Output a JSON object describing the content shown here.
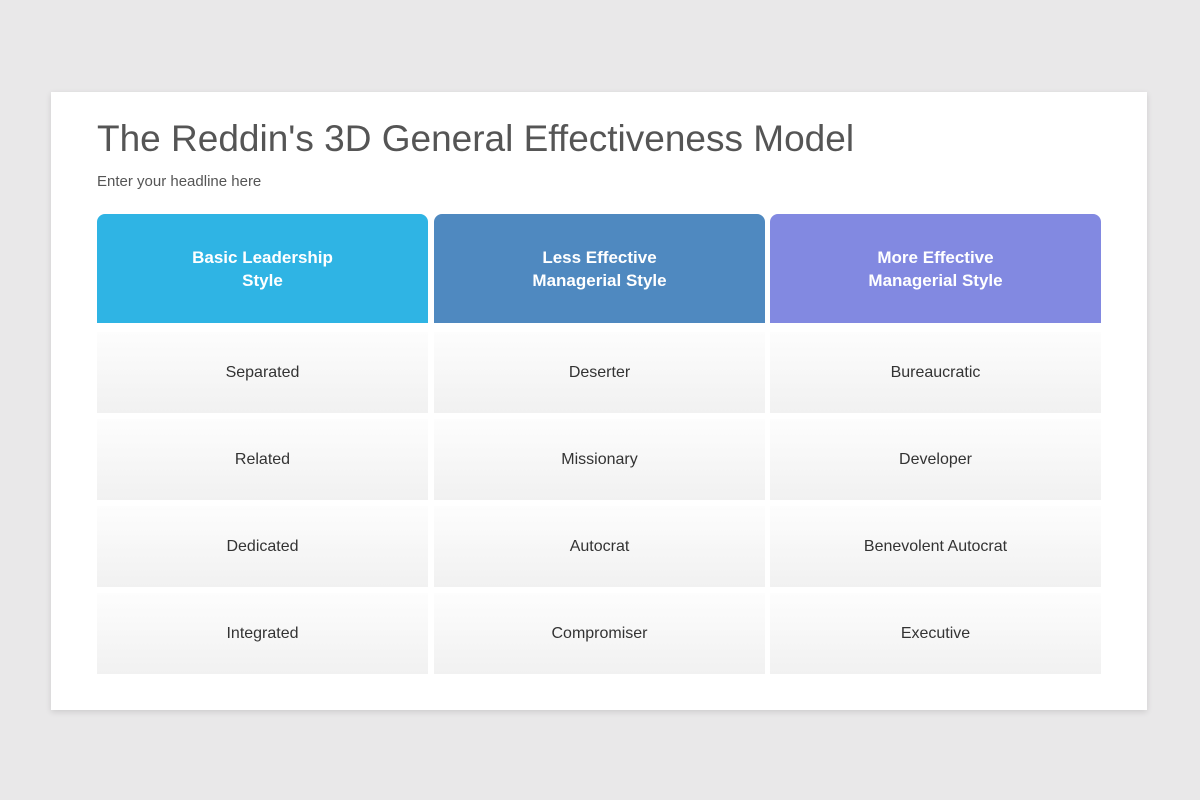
{
  "header": {
    "title": "The Reddin's 3D General Effectiveness Model",
    "subtitle": "Enter your headline here"
  },
  "table": {
    "headers": [
      {
        "label": "Basic Leadership\nStyle",
        "color": "#2fb4e4"
      },
      {
        "label": "Less Effective\nManagerial Style",
        "color": "#4f89c0"
      },
      {
        "label": "More Effective\nManagerial Style",
        "color": "#8289e1"
      }
    ],
    "rows": [
      [
        "Separated",
        "Deserter",
        "Bureaucratic"
      ],
      [
        "Related",
        "Missionary",
        "Developer"
      ],
      [
        "Dedicated",
        "Autocrat",
        "Benevolent Autocrat"
      ],
      [
        "Integrated",
        "Compromiser",
        "Executive"
      ]
    ]
  }
}
